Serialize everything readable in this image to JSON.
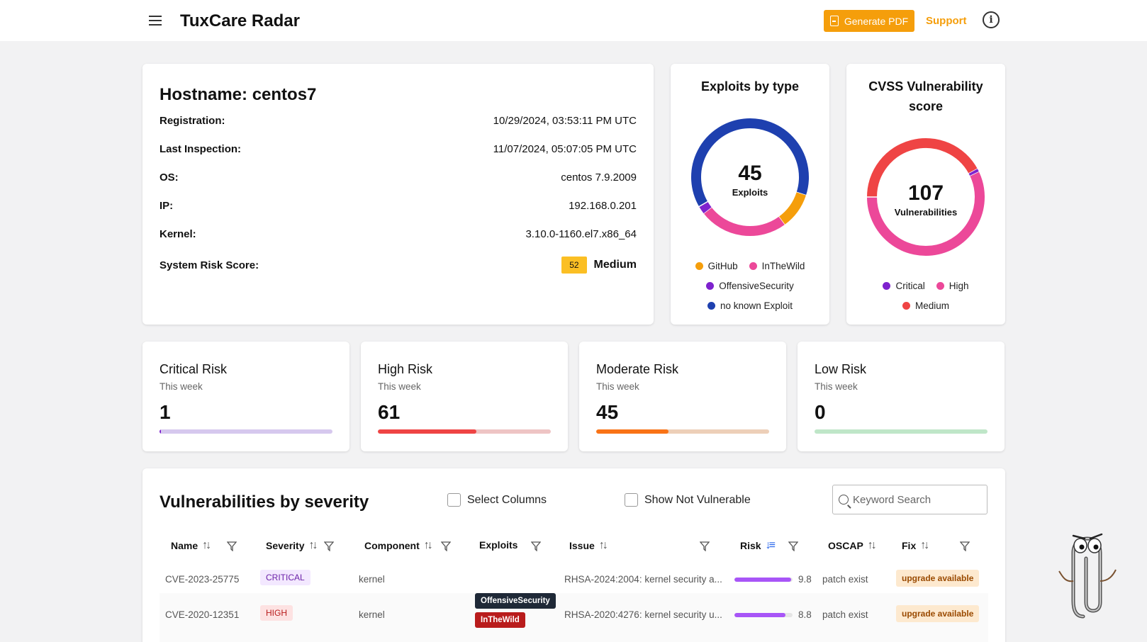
{
  "header": {
    "title": "TuxCare Radar",
    "pdf_label": "Generate PDF",
    "support_label": "Support"
  },
  "host": {
    "title": "Hostname: centos7",
    "rows": [
      {
        "label": "Registration:",
        "value": "10/29/2024, 03:53:11 PM UTC"
      },
      {
        "label": "Last Inspection:",
        "value": "11/07/2024, 05:07:05 PM UTC"
      },
      {
        "label": "OS:",
        "value": "centos 7.9.2009"
      },
      {
        "label": "IP:",
        "value": "192.168.0.201"
      },
      {
        "label": "Kernel:",
        "value": "3.10.0-1160.el7.x86_64"
      }
    ],
    "risk_label": "System Risk Score:",
    "risk_score": "52",
    "risk_level": "Medium",
    "risk_color": "#fbbf24"
  },
  "exploits_chart": {
    "title": "Exploits by type",
    "total": "45",
    "total_label": "Exploits",
    "legend": [
      "GitHub",
      "InTheWild",
      "OffensiveSecurity",
      "no known Exploit"
    ]
  },
  "cvss_chart": {
    "title": "CVSS Vulnerability score",
    "total": "107",
    "total_label": "Vulnerabilities",
    "legend": [
      "Critical",
      "High",
      "Medium"
    ]
  },
  "chart_data": [
    {
      "type": "pie",
      "title": "Exploits by type",
      "categories": [
        "no known Exploit",
        "GitHub",
        "InTheWild",
        "OffensiveSecurity"
      ],
      "values": [
        28.5,
        4.5,
        11,
        1
      ],
      "colors": [
        "#1e40af",
        "#f59e0b",
        "#ec4899",
        "#7e22ce"
      ],
      "legend": "bottom"
    },
    {
      "type": "pie",
      "title": "CVSS Vulnerability score",
      "categories": [
        "Medium",
        "Critical",
        "High"
      ],
      "values": [
        45,
        1,
        61
      ],
      "colors": [
        "#ef4444",
        "#7e22ce",
        "#ec4899"
      ],
      "legend": "bottom"
    }
  ],
  "stats": [
    {
      "title": "Critical Risk",
      "sub": "This week",
      "value": "1",
      "fraction": 0.01,
      "fill": "#7e22ce",
      "track": "#d6c8ee"
    },
    {
      "title": "High Risk",
      "sub": "This week",
      "value": "61",
      "fraction": 0.57,
      "fill": "#ef4444",
      "track": "#eec4c4"
    },
    {
      "title": "Moderate Risk",
      "sub": "This week",
      "value": "45",
      "fraction": 0.42,
      "fill": "#f97316",
      "track": "#edcfb8"
    },
    {
      "title": "Low Risk",
      "sub": "This week",
      "value": "0",
      "fraction": 0,
      "fill": "#22c55e",
      "track": "#bfe6c8"
    }
  ],
  "vulns": {
    "title": "Vulnerabilities by severity",
    "select_columns": "Select Columns",
    "show_not_vulnerable": "Show Not Vulnerable",
    "search_placeholder": "Keyword Search",
    "columns": [
      "Name",
      "Severity",
      "Component",
      "Exploits",
      "Issue",
      "Risk",
      "OSCAP",
      "Fix"
    ],
    "rows": [
      {
        "name": "CVE-2023-25775",
        "severity": "CRITICAL",
        "component": "kernel",
        "exploits": [],
        "issue": "RHSA-2024:2004: kernel security a...",
        "risk": "9.8",
        "risk_value": 9.8,
        "oscap": "patch exist",
        "fix": "upgrade available"
      },
      {
        "name": "CVE-2020-12351",
        "severity": "HIGH",
        "component": "kernel",
        "exploits": [
          "OffensiveSecurity",
          "InTheWild"
        ],
        "issue": "RHSA-2020:4276: kernel security u...",
        "risk": "8.8",
        "risk_value": 8.8,
        "oscap": "patch exist",
        "fix": "upgrade available"
      }
    ]
  }
}
